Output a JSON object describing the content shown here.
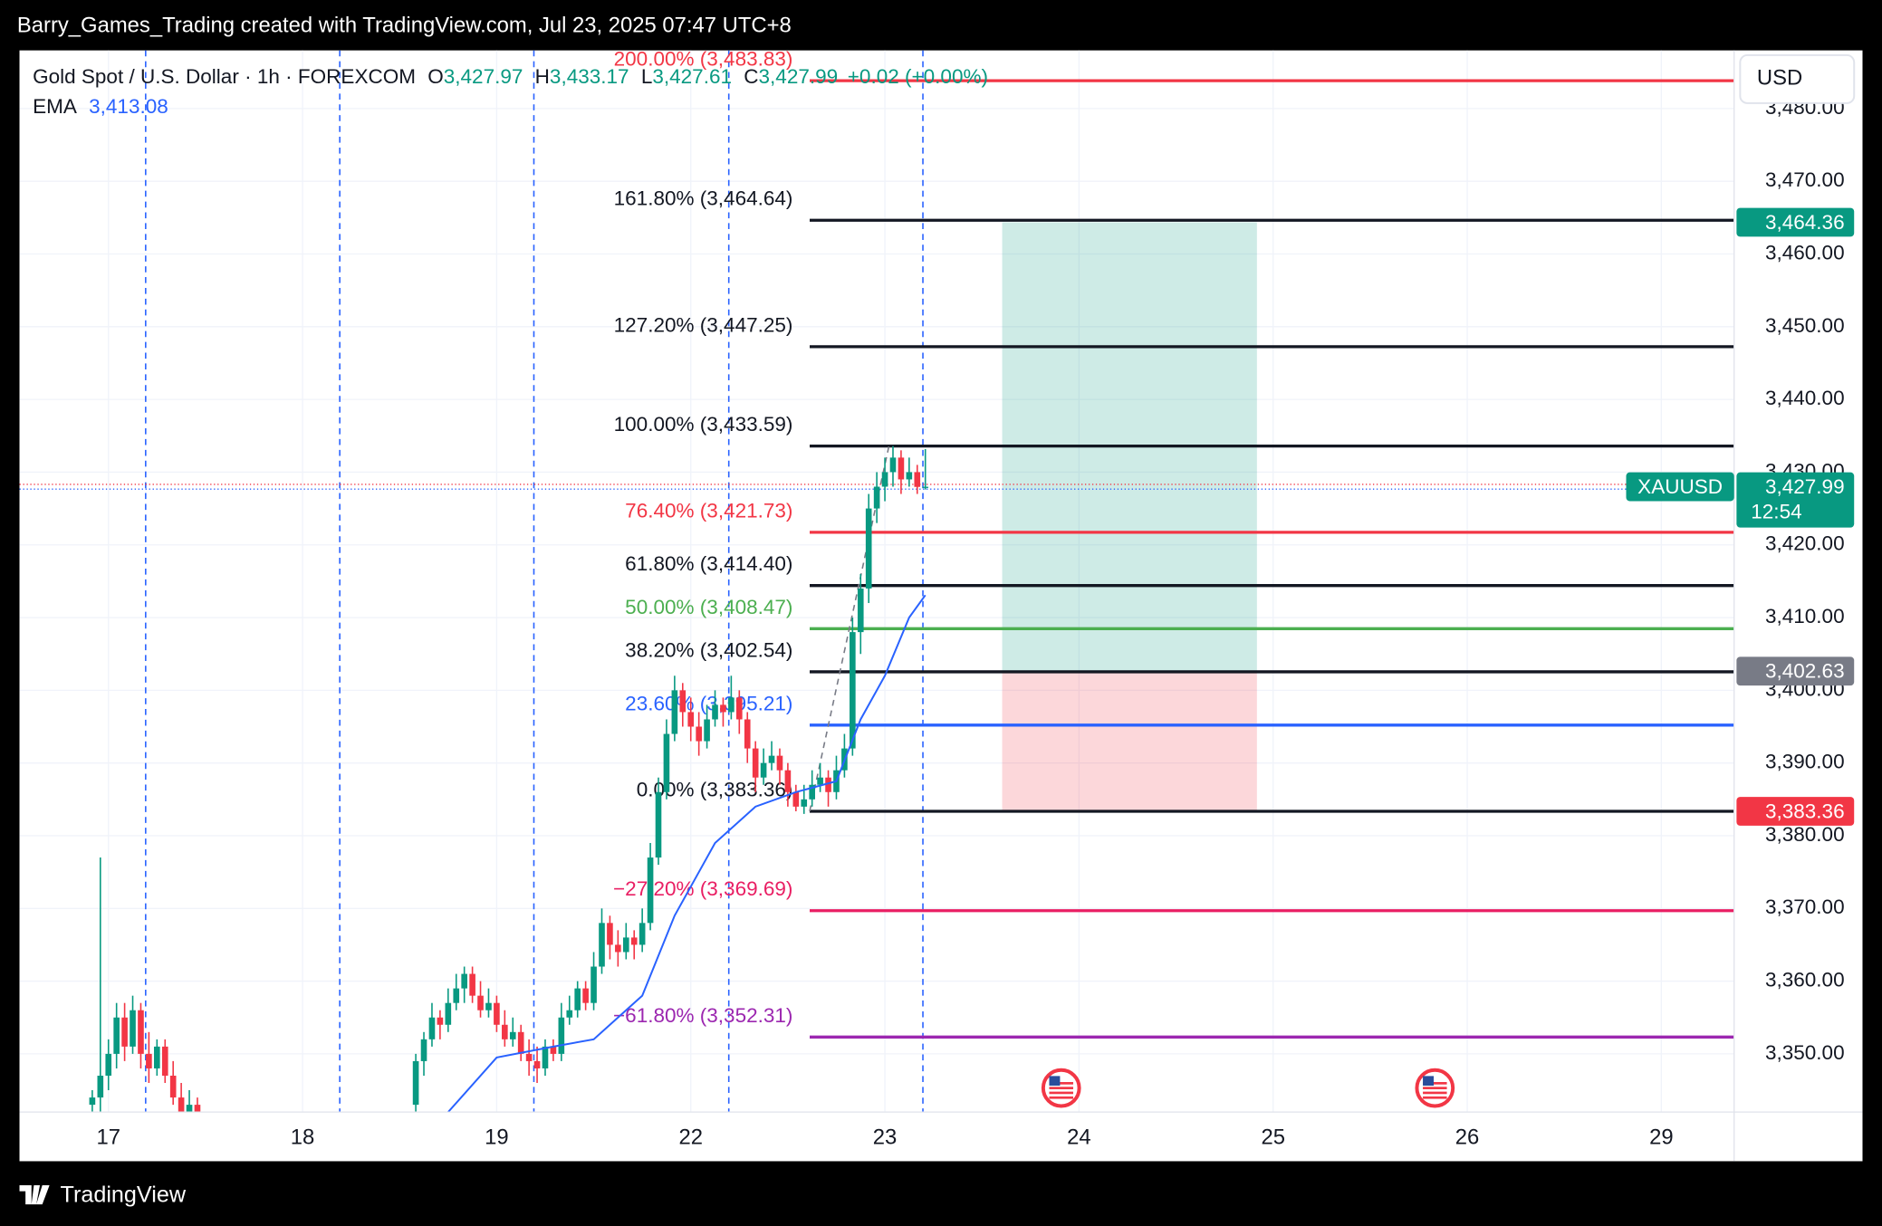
{
  "header": "Barry_Games_Trading created with TradingView.com, Jul 23, 2025 07:47 UTC+8",
  "footer": "TradingView",
  "chart_data": {
    "type": "candlestick",
    "symbol": "Gold Spot / U.S. Dollar · 1h · FOREXCOM",
    "ohlc": [
      {
        "key": "O",
        "label": "3,427.97"
      },
      {
        "key": "H",
        "label": "3,433.17"
      },
      {
        "key": "L",
        "label": "3,427.61"
      },
      {
        "key": "C",
        "label": "3,427.99"
      }
    ],
    "change": "+0.02 (+0.00%)",
    "currency": "USD",
    "up_color": "#089981",
    "down_color": "#f23645",
    "xlim": [
      -11,
      201
    ],
    "xticks": [
      {
        "value": 0,
        "label": "17"
      },
      {
        "value": 24,
        "label": "18"
      },
      {
        "value": 48,
        "label": "19"
      },
      {
        "value": 72,
        "label": "22"
      },
      {
        "value": 96,
        "label": "23"
      },
      {
        "value": 120,
        "label": "24"
      },
      {
        "value": 144,
        "label": "25"
      },
      {
        "value": 168,
        "label": "26"
      },
      {
        "value": 192,
        "label": "29"
      }
    ],
    "ylim": [
      3342,
      3488
    ],
    "yticks": [
      {
        "value": 3350,
        "label": "3,350.00"
      },
      {
        "value": 3360,
        "label": "3,360.00"
      },
      {
        "value": 3370,
        "label": "3,370.00"
      },
      {
        "value": 3380,
        "label": "3,380.00"
      },
      {
        "value": 3390,
        "label": "3,390.00"
      },
      {
        "value": 3400,
        "label": "3,400.00"
      },
      {
        "value": 3410,
        "label": "3,410.00"
      },
      {
        "value": 3420,
        "label": "3,420.00"
      },
      {
        "value": 3430,
        "label": "3,430.00"
      },
      {
        "value": 3440,
        "label": "3,440.00"
      },
      {
        "value": 3450,
        "label": "3,450.00"
      },
      {
        "value": 3460,
        "label": "3,460.00"
      },
      {
        "value": 3470,
        "label": "3,470.00"
      },
      {
        "value": 3480,
        "label": "3,480.00"
      }
    ],
    "grid": true,
    "candles": [
      {
        "x": -2,
        "o": 3343,
        "h": 3345,
        "l": 3340,
        "c": 3344
      },
      {
        "x": -1,
        "o": 3344,
        "h": 3377,
        "l": 3342,
        "c": 3347
      },
      {
        "x": 0,
        "o": 3347,
        "h": 3352,
        "l": 3345,
        "c": 3350
      },
      {
        "x": 1,
        "o": 3350,
        "h": 3357,
        "l": 3348,
        "c": 3355
      },
      {
        "x": 2,
        "o": 3355,
        "h": 3357,
        "l": 3349,
        "c": 3351
      },
      {
        "x": 3,
        "o": 3351,
        "h": 3358,
        "l": 3350,
        "c": 3356
      },
      {
        "x": 4,
        "o": 3356,
        "h": 3357,
        "l": 3348,
        "c": 3350
      },
      {
        "x": 5,
        "o": 3350,
        "h": 3353,
        "l": 3346,
        "c": 3348
      },
      {
        "x": 6,
        "o": 3348,
        "h": 3352,
        "l": 3347,
        "c": 3351
      },
      {
        "x": 7,
        "o": 3351,
        "h": 3352,
        "l": 3346,
        "c": 3347
      },
      {
        "x": 8,
        "o": 3347,
        "h": 3349,
        "l": 3343,
        "c": 3344
      },
      {
        "x": 9,
        "o": 3344,
        "h": 3346,
        "l": 3341,
        "c": 3342
      },
      {
        "x": 10,
        "o": 3342,
        "h": 3345,
        "l": 3340,
        "c": 3343
      },
      {
        "x": 11,
        "o": 3343,
        "h": 3344,
        "l": 3339,
        "c": 3341
      },
      {
        "x": 38,
        "o": 3343,
        "h": 3350,
        "l": 3341,
        "c": 3349
      },
      {
        "x": 39,
        "o": 3349,
        "h": 3353,
        "l": 3347,
        "c": 3352
      },
      {
        "x": 40,
        "o": 3352,
        "h": 3357,
        "l": 3351,
        "c": 3355
      },
      {
        "x": 41,
        "o": 3355,
        "h": 3356,
        "l": 3352,
        "c": 3354
      },
      {
        "x": 42,
        "o": 3354,
        "h": 3359,
        "l": 3353,
        "c": 3357
      },
      {
        "x": 43,
        "o": 3357,
        "h": 3361,
        "l": 3356,
        "c": 3359
      },
      {
        "x": 44,
        "o": 3359,
        "h": 3362,
        "l": 3357,
        "c": 3361
      },
      {
        "x": 45,
        "o": 3361,
        "h": 3362,
        "l": 3357,
        "c": 3358
      },
      {
        "x": 46,
        "o": 3358,
        "h": 3360,
        "l": 3355,
        "c": 3356
      },
      {
        "x": 47,
        "o": 3356,
        "h": 3359,
        "l": 3355,
        "c": 3357
      },
      {
        "x": 48,
        "o": 3357,
        "h": 3358,
        "l": 3353,
        "c": 3354
      },
      {
        "x": 49,
        "o": 3354,
        "h": 3356,
        "l": 3351,
        "c": 3352
      },
      {
        "x": 50,
        "o": 3352,
        "h": 3355,
        "l": 3351,
        "c": 3353
      },
      {
        "x": 51,
        "o": 3353,
        "h": 3354,
        "l": 3349,
        "c": 3350
      },
      {
        "x": 52,
        "o": 3350,
        "h": 3352,
        "l": 3347,
        "c": 3349
      },
      {
        "x": 53,
        "o": 3349,
        "h": 3351,
        "l": 3346,
        "c": 3348
      },
      {
        "x": 54,
        "o": 3348,
        "h": 3352,
        "l": 3347,
        "c": 3351
      },
      {
        "x": 55,
        "o": 3351,
        "h": 3352,
        "l": 3349,
        "c": 3350
      },
      {
        "x": 56,
        "o": 3350,
        "h": 3357,
        "l": 3349,
        "c": 3355
      },
      {
        "x": 57,
        "o": 3355,
        "h": 3358,
        "l": 3354,
        "c": 3356
      },
      {
        "x": 58,
        "o": 3356,
        "h": 3360,
        "l": 3355,
        "c": 3359
      },
      {
        "x": 59,
        "o": 3359,
        "h": 3360,
        "l": 3356,
        "c": 3357
      },
      {
        "x": 60,
        "o": 3357,
        "h": 3364,
        "l": 3356,
        "c": 3362
      },
      {
        "x": 61,
        "o": 3362,
        "h": 3370,
        "l": 3361,
        "c": 3368
      },
      {
        "x": 62,
        "o": 3368,
        "h": 3369,
        "l": 3363,
        "c": 3365
      },
      {
        "x": 63,
        "o": 3365,
        "h": 3367,
        "l": 3362,
        "c": 3364
      },
      {
        "x": 64,
        "o": 3364,
        "h": 3368,
        "l": 3363,
        "c": 3366
      },
      {
        "x": 65,
        "o": 3366,
        "h": 3367,
        "l": 3363,
        "c": 3365
      },
      {
        "x": 66,
        "o": 3365,
        "h": 3370,
        "l": 3364,
        "c": 3368
      },
      {
        "x": 67,
        "o": 3368,
        "h": 3379,
        "l": 3367,
        "c": 3377
      },
      {
        "x": 68,
        "o": 3377,
        "h": 3388,
        "l": 3376,
        "c": 3386
      },
      {
        "x": 69,
        "o": 3386,
        "h": 3396,
        "l": 3385,
        "c": 3394
      },
      {
        "x": 70,
        "o": 3394,
        "h": 3402,
        "l": 3393,
        "c": 3400
      },
      {
        "x": 71,
        "o": 3400,
        "h": 3401,
        "l": 3395,
        "c": 3397
      },
      {
        "x": 72,
        "o": 3397,
        "h": 3399,
        "l": 3393,
        "c": 3395
      },
      {
        "x": 73,
        "o": 3395,
        "h": 3397,
        "l": 3391,
        "c": 3393
      },
      {
        "x": 74,
        "o": 3393,
        "h": 3398,
        "l": 3392,
        "c": 3396
      },
      {
        "x": 75,
        "o": 3396,
        "h": 3400,
        "l": 3395,
        "c": 3398
      },
      {
        "x": 76,
        "o": 3398,
        "h": 3399,
        "l": 3395,
        "c": 3397
      },
      {
        "x": 77,
        "o": 3397,
        "h": 3402,
        "l": 3396,
        "c": 3399
      },
      {
        "x": 78,
        "o": 3399,
        "h": 3400,
        "l": 3394,
        "c": 3396
      },
      {
        "x": 79,
        "o": 3396,
        "h": 3397,
        "l": 3390,
        "c": 3392
      },
      {
        "x": 80,
        "o": 3392,
        "h": 3393,
        "l": 3386,
        "c": 3388
      },
      {
        "x": 81,
        "o": 3388,
        "h": 3392,
        "l": 3387,
        "c": 3390
      },
      {
        "x": 82,
        "o": 3390,
        "h": 3393,
        "l": 3389,
        "c": 3391
      },
      {
        "x": 83,
        "o": 3391,
        "h": 3392,
        "l": 3387,
        "c": 3389
      },
      {
        "x": 84,
        "o": 3389,
        "h": 3390,
        "l": 3384,
        "c": 3386
      },
      {
        "x": 85,
        "o": 3386,
        "h": 3387,
        "l": 3383.36,
        "c": 3384
      },
      {
        "x": 86,
        "o": 3384,
        "h": 3387,
        "l": 3383,
        "c": 3385
      },
      {
        "x": 87,
        "o": 3385,
        "h": 3389,
        "l": 3384,
        "c": 3387
      },
      {
        "x": 88,
        "o": 3387,
        "h": 3390,
        "l": 3386,
        "c": 3388
      },
      {
        "x": 89,
        "o": 3388,
        "h": 3389,
        "l": 3384,
        "c": 3386
      },
      {
        "x": 90,
        "o": 3386,
        "h": 3391,
        "l": 3385,
        "c": 3389
      },
      {
        "x": 91,
        "o": 3389,
        "h": 3394,
        "l": 3388,
        "c": 3392
      },
      {
        "x": 92,
        "o": 3392,
        "h": 3410,
        "l": 3391,
        "c": 3408
      },
      {
        "x": 93,
        "o": 3408,
        "h": 3416,
        "l": 3405,
        "c": 3414
      },
      {
        "x": 94,
        "o": 3414,
        "h": 3427,
        "l": 3412,
        "c": 3425
      },
      {
        "x": 95,
        "o": 3425,
        "h": 3430,
        "l": 3423,
        "c": 3428
      },
      {
        "x": 96,
        "o": 3428,
        "h": 3432,
        "l": 3426,
        "c": 3430
      },
      {
        "x": 97,
        "o": 3430,
        "h": 3433.59,
        "l": 3428,
        "c": 3432
      },
      {
        "x": 98,
        "o": 3432,
        "h": 3433,
        "l": 3427,
        "c": 3429
      },
      {
        "x": 99,
        "o": 3429,
        "h": 3432,
        "l": 3428,
        "c": 3430
      },
      {
        "x": 100,
        "o": 3430,
        "h": 3431,
        "l": 3427,
        "c": 3427.97
      },
      {
        "x": 101,
        "o": 3427.97,
        "h": 3433.17,
        "l": 3427.61,
        "c": 3427.99
      }
    ],
    "ema": {
      "name": "EMA",
      "label": "3,413.08",
      "color": "#2962ff",
      "x": [
        42,
        48,
        55,
        60,
        66,
        70,
        75,
        80,
        85,
        90,
        93,
        96,
        99,
        101
      ],
      "values": [
        3342,
        3349.5,
        3351,
        3352,
        3358,
        3369,
        3379,
        3384,
        3386,
        3387.5,
        3396,
        3402,
        3410,
        3413.08
      ]
    },
    "fib_xlim": [
      86.7,
      201
    ],
    "fib_levels": [
      {
        "label": "200.00% (3,483.83)",
        "value": 3483.83,
        "color": "#f23645"
      },
      {
        "label": "161.80% (3,464.64)",
        "value": 3464.64,
        "color": "#131722"
      },
      {
        "label": "127.20% (3,447.25)",
        "value": 3447.25,
        "color": "#131722"
      },
      {
        "label": "100.00% (3,433.59)",
        "value": 3433.59,
        "color": "#131722"
      },
      {
        "label": "76.40% (3,421.73)",
        "value": 3421.73,
        "color": "#f23645"
      },
      {
        "label": "61.80% (3,414.40)",
        "value": 3414.4,
        "color": "#131722"
      },
      {
        "label": "50.00% (3,408.47)",
        "value": 3408.47,
        "color": "#4caf50"
      },
      {
        "label": "38.20% (3,402.54)",
        "value": 3402.54,
        "color": "#131722"
      },
      {
        "label": "23.60% (3,395.21)",
        "value": 3395.21,
        "color": "#2962ff"
      },
      {
        "label": "0.00% (3,383.36)",
        "value": 3383.36,
        "color": "#131722"
      },
      {
        "label": "−27.20% (3,369.69)",
        "value": 3369.69,
        "color": "#e91e63"
      },
      {
        "label": "−61.80% (3,352.31)",
        "value": 3352.31,
        "color": "#9c27b0"
      }
    ],
    "trend_line": {
      "x": [
        86.7,
        96.5
      ],
      "values": [
        3383.36,
        3433.59
      ]
    },
    "position": {
      "x": [
        110.5,
        142
      ],
      "target": {
        "value": 3464.36,
        "label": "3,464.36"
      },
      "entry": {
        "value": 3402.63,
        "label": "3,402.63"
      },
      "stop": {
        "value": 3383.36,
        "label": "3,383.36"
      }
    },
    "last_price": {
      "symbol": "XAUUSD",
      "value": 3427.99,
      "label": "3,427.99",
      "countdown": "12:54"
    },
    "session_lines": [
      4.6,
      28.6,
      52.6,
      76.7,
      100.7
    ],
    "event_x": [
      117.8,
      164
    ]
  }
}
